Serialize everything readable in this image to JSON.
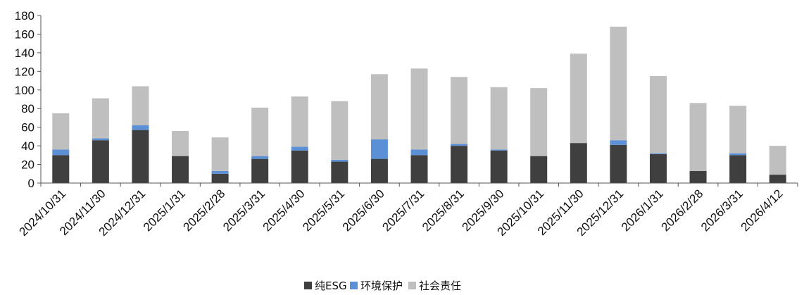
{
  "chart_data": {
    "type": "bar",
    "stacked": true,
    "categories": [
      "2024/10/31",
      "2024/11/30",
      "2024/12/31",
      "2025/1/31",
      "2025/2/28",
      "2025/3/31",
      "2025/4/30",
      "2025/5/31",
      "2025/6/30",
      "2025/7/31",
      "2025/8/31",
      "2025/9/30",
      "2025/10/31",
      "2025/11/30",
      "2025/12/31",
      "2026/1/31",
      "2026/2/28",
      "2026/3/31",
      "2026/4/12"
    ],
    "series": [
      {
        "name": "纯ESG",
        "color": "#3f3f3f",
        "values": [
          30,
          46,
          57,
          29,
          10,
          26,
          35,
          23,
          26,
          30,
          40,
          35,
          29,
          43,
          41,
          31,
          13,
          30,
          9
        ]
      },
      {
        "name": "环境保护",
        "color": "#5b8fd6",
        "values": [
          6,
          2,
          5,
          0,
          3,
          3,
          4,
          2,
          21,
          6,
          2,
          1,
          0,
          0,
          5,
          1,
          0,
          2,
          0
        ]
      },
      {
        "name": "社会责任",
        "color": "#bfbfbf",
        "values": [
          39,
          43,
          42,
          27,
          36,
          52,
          54,
          63,
          70,
          87,
          72,
          67,
          73,
          96,
          122,
          83,
          73,
          51,
          31
        ]
      }
    ],
    "ylim": [
      0,
      180
    ],
    "yticks": [
      0,
      20,
      40,
      60,
      80,
      100,
      120,
      140,
      160,
      180
    ],
    "legend_position": "bottom",
    "grid": false,
    "title": "",
    "xlabel": "",
    "ylabel": ""
  }
}
